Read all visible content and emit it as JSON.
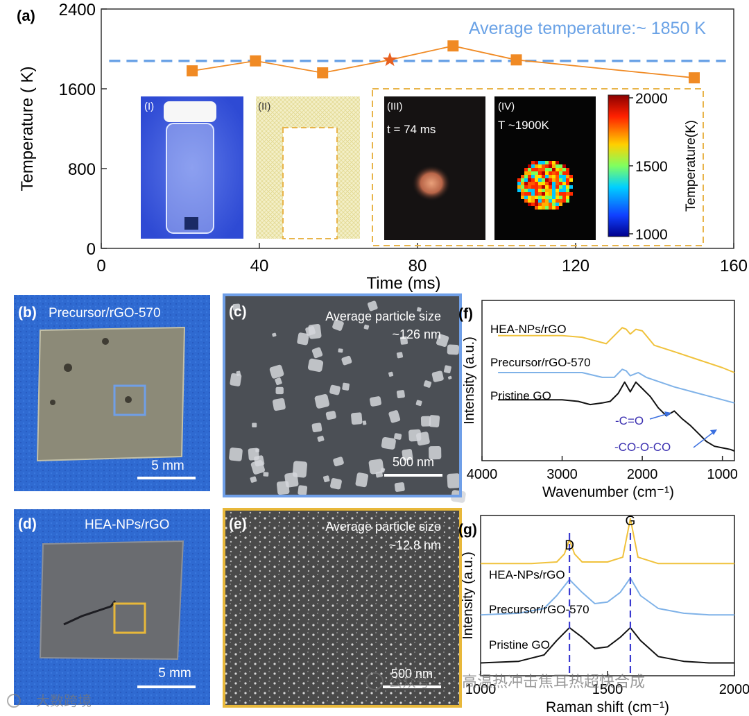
{
  "chart_data": [
    {
      "panel": "(a)",
      "type": "line",
      "title": "",
      "xlabel": "Time (ms)",
      "ylabel": "Temperature ( K)",
      "xlim": [
        0,
        160
      ],
      "ylim": [
        0,
        2400
      ],
      "x_ticks": [
        0,
        40,
        80,
        120,
        160
      ],
      "y_ticks": [
        0,
        800,
        1600,
        2400
      ],
      "series": [
        {
          "name": "temperature",
          "x": [
            23,
            39,
            56,
            73,
            89,
            105,
            150
          ],
          "y": [
            1780,
            1880,
            1760,
            1890,
            2030,
            1890,
            1710
          ],
          "star_index": 3
        }
      ],
      "average_line": {
        "value": 1880,
        "label": "Average temperature:~ 1850 K"
      },
      "insets": [
        {
          "label": "(I)"
        },
        {
          "label": "(II)"
        },
        {
          "label": "(III)",
          "text": "t = 74 ms"
        },
        {
          "label": "(IV)",
          "text": "T ~1900K"
        }
      ],
      "colorbar": {
        "label": "Temperature(K)",
        "ticks": [
          2000,
          1500,
          1000
        ]
      },
      "colors": {
        "series": "#f08a24",
        "average": "#6aa2e6",
        "frame": "#e8b44a"
      }
    },
    {
      "panel": "(f)",
      "type": "line",
      "xlabel": "Wavenumber (cm⁻¹)",
      "ylabel": "Intensity (a.u.)",
      "xlim": [
        4000,
        850
      ],
      "x_ticks": [
        4000,
        3000,
        2000,
        1000
      ],
      "series": [
        {
          "name": "HEA-NPs/rGO",
          "color": "#f0c23c",
          "x": [
            4200,
            3800,
            3400,
            3000,
            2750,
            2600,
            2450,
            2350,
            2250,
            2200,
            2150,
            2080,
            2000,
            1950,
            1850,
            1600,
            1300,
            1000,
            850
          ],
          "y": [
            0.78,
            0.78,
            0.78,
            0.78,
            0.77,
            0.75,
            0.73,
            0.78,
            0.83,
            0.82,
            0.79,
            0.82,
            0.81,
            0.78,
            0.72,
            0.68,
            0.63,
            0.58,
            0.55
          ]
        },
        {
          "name": "Precursor/rGO-570",
          "color": "#7fb2e8",
          "x": [
            4200,
            3800,
            3400,
            3000,
            2750,
            2500,
            2350,
            2250,
            2200,
            2150,
            2050,
            1950,
            1600,
            1300,
            1000,
            850
          ],
          "y": [
            0.55,
            0.55,
            0.55,
            0.55,
            0.55,
            0.52,
            0.52,
            0.57,
            0.56,
            0.53,
            0.55,
            0.52,
            0.46,
            0.42,
            0.38,
            0.36
          ]
        },
        {
          "name": "Pristine GO",
          "color": "#111111",
          "x": [
            4200,
            3800,
            3400,
            3000,
            2800,
            2650,
            2500,
            2400,
            2300,
            2220,
            2150,
            2080,
            2000,
            1900,
            1800,
            1700,
            1600,
            1500,
            1400,
            1300,
            1200,
            1100,
            1000,
            900,
            850
          ],
          "y": [
            0.38,
            0.38,
            0.38,
            0.38,
            0.37,
            0.35,
            0.36,
            0.37,
            0.42,
            0.49,
            0.43,
            0.49,
            0.45,
            0.4,
            0.33,
            0.28,
            0.31,
            0.26,
            0.22,
            0.17,
            0.12,
            0.09,
            0.08,
            0.07,
            0.06
          ]
        }
      ],
      "annotations": [
        "-C=O",
        "-CO-O-CO"
      ]
    },
    {
      "panel": "(g)",
      "type": "line",
      "xlabel": "Raman shift (cm⁻¹)",
      "ylabel": "Intensity (a.u.)",
      "xlim": [
        1000,
        2000
      ],
      "x_ticks": [
        1000,
        1500,
        2000
      ],
      "peaks": [
        {
          "label": "D",
          "x": 1350
        },
        {
          "label": "G",
          "x": 1590
        }
      ],
      "series": [
        {
          "name": "HEA-NPs/rGO",
          "color": "#f0c23c",
          "x": [
            1000,
            1200,
            1300,
            1330,
            1350,
            1370,
            1400,
            1500,
            1560,
            1580,
            1590,
            1600,
            1620,
            1700,
            1800,
            1900,
            2000
          ],
          "y": [
            0.7,
            0.7,
            0.71,
            0.76,
            0.85,
            0.76,
            0.71,
            0.71,
            0.74,
            0.9,
            0.98,
            0.9,
            0.74,
            0.7,
            0.7,
            0.7,
            0.7
          ]
        },
        {
          "name": "Precursor/rGO-570",
          "color": "#7fb2e8",
          "x": [
            1000,
            1150,
            1250,
            1300,
            1350,
            1400,
            1450,
            1500,
            1550,
            1590,
            1630,
            1700,
            1800,
            1900,
            2000
          ],
          "y": [
            0.38,
            0.39,
            0.42,
            0.5,
            0.6,
            0.52,
            0.45,
            0.46,
            0.52,
            0.61,
            0.5,
            0.42,
            0.39,
            0.38,
            0.38
          ]
        },
        {
          "name": "Pristine GO",
          "color": "#111111",
          "x": [
            1000,
            1150,
            1250,
            1300,
            1350,
            1400,
            1450,
            1500,
            1550,
            1590,
            1630,
            1700,
            1800,
            1900,
            2000
          ],
          "y": [
            0.08,
            0.09,
            0.13,
            0.22,
            0.3,
            0.24,
            0.17,
            0.18,
            0.24,
            0.3,
            0.22,
            0.12,
            0.09,
            0.08,
            0.08
          ]
        }
      ]
    }
  ],
  "panels": {
    "b": {
      "letter": "(b)",
      "title": "Precursor/rGO-570",
      "scale": "5 mm"
    },
    "c": {
      "letter": "(c)",
      "size_label": "Average particle size",
      "size_value": "~126 nm",
      "scale": "500 nm"
    },
    "d": {
      "letter": "(d)",
      "title": "HEA-NPs/rGO",
      "scale": "5 mm"
    },
    "e": {
      "letter": "(e)",
      "size_label": "Average particle  size",
      "size_value": "~12.8 nm",
      "scale": "500 nm"
    }
  },
  "watermarks": {
    "left": "大数跨境",
    "right": "· 高温热冲击焦耳热超快合成",
    "mark": "公众号"
  }
}
